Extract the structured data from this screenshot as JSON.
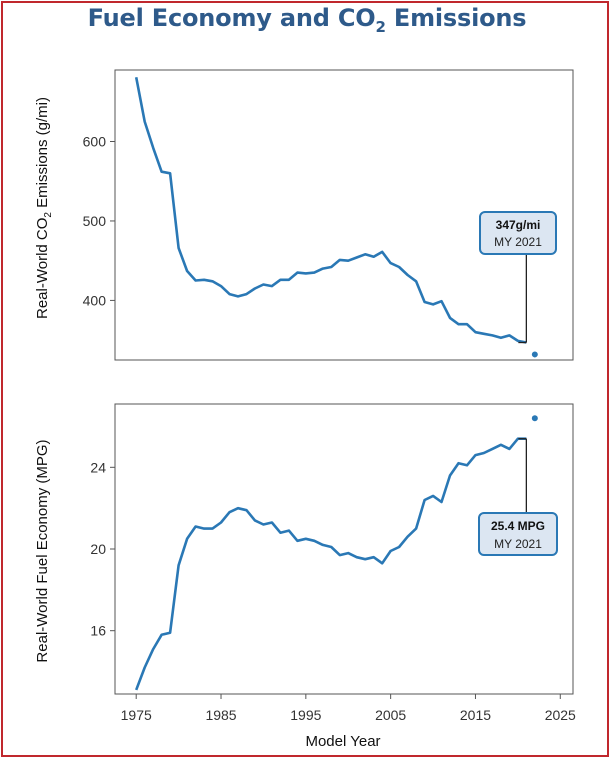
{
  "title_main": "Fuel Economy and CO",
  "title_sub": "2",
  "title_end": " Emissions",
  "colors": {
    "line": "#2a78b5",
    "frame": "#c0282d",
    "title": "#2e5a8a",
    "callout_bg": "#dce6f2"
  },
  "chart_data": [
    {
      "type": "line",
      "ylabel": "Real-World CO2 Emissions (g/mi)",
      "ylabel_main": "Real-World CO",
      "ylabel_sub": "2",
      "ylabel_end": " Emissions (g/mi)",
      "ylim": [
        325,
        690
      ],
      "yticks": [
        400,
        500,
        600
      ],
      "x": [
        1975,
        1976,
        1977,
        1978,
        1979,
        1980,
        1981,
        1982,
        1983,
        1984,
        1985,
        1986,
        1987,
        1988,
        1989,
        1990,
        1991,
        1992,
        1993,
        1994,
        1995,
        1996,
        1997,
        1998,
        1999,
        2000,
        2001,
        2002,
        2003,
        2004,
        2005,
        2006,
        2007,
        2008,
        2009,
        2010,
        2011,
        2012,
        2013,
        2014,
        2015,
        2016,
        2017,
        2018,
        2019,
        2020,
        2021
      ],
      "series": [
        {
          "values": [
            681,
            625,
            592,
            562,
            560,
            466,
            437,
            425,
            426,
            424,
            418,
            408,
            405,
            408,
            415,
            420,
            418,
            426,
            426,
            435,
            434,
            435,
            440,
            442,
            451,
            450,
            454,
            458,
            455,
            461,
            447,
            442,
            432,
            424,
            398,
            395,
            399,
            378,
            370,
            370,
            360,
            358,
            356,
            353,
            356,
            349,
            347
          ]
        }
      ],
      "point": {
        "x": 2022,
        "y": 332
      },
      "callout": {
        "value": "347g/mi",
        "label": "MY 2021"
      }
    },
    {
      "type": "line",
      "ylabel": "Real-World Fuel Economy (MPG)",
      "xlabel": "Model Year",
      "ylim": [
        12.9,
        27.1
      ],
      "yticks": [
        16,
        20,
        24
      ],
      "xlim": [
        1972.5,
        2026.5
      ],
      "xticks": [
        1975,
        1985,
        1995,
        2005,
        2015,
        2025
      ],
      "x": [
        1975,
        1976,
        1977,
        1978,
        1979,
        1980,
        1981,
        1982,
        1983,
        1984,
        1985,
        1986,
        1987,
        1988,
        1989,
        1990,
        1991,
        1992,
        1993,
        1994,
        1995,
        1996,
        1997,
        1998,
        1999,
        2000,
        2001,
        2002,
        2003,
        2004,
        2005,
        2006,
        2007,
        2008,
        2009,
        2010,
        2011,
        2012,
        2013,
        2014,
        2015,
        2016,
        2017,
        2018,
        2019,
        2020,
        2021
      ],
      "series": [
        {
          "values": [
            13.1,
            14.2,
            15.1,
            15.8,
            15.9,
            19.2,
            20.5,
            21.1,
            21.0,
            21.0,
            21.3,
            21.8,
            22.0,
            21.9,
            21.4,
            21.2,
            21.3,
            20.8,
            20.9,
            20.4,
            20.5,
            20.4,
            20.2,
            20.1,
            19.7,
            19.8,
            19.6,
            19.5,
            19.6,
            19.3,
            19.9,
            20.1,
            20.6,
            21.0,
            22.4,
            22.6,
            22.3,
            23.6,
            24.2,
            24.1,
            24.6,
            24.7,
            24.9,
            25.1,
            24.9,
            25.4,
            25.4
          ]
        }
      ],
      "point": {
        "x": 2022,
        "y": 26.4
      },
      "callout": {
        "value": "25.4 MPG",
        "label": "MY 2021"
      }
    }
  ]
}
